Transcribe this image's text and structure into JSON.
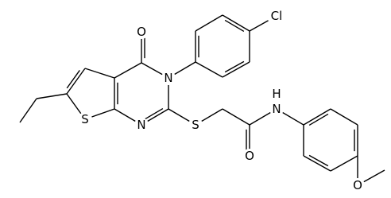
{
  "atoms": [
    {
      "label": "O"
    },
    {
      "label": "N"
    },
    {
      "label": "Cl"
    },
    {
      "label": "S"
    },
    {
      "label": "N"
    },
    {
      "label": "S"
    },
    {
      "label": "O"
    },
    {
      "label": "N"
    },
    {
      "label": "H"
    },
    {
      "label": "O"
    }
  ]
}
